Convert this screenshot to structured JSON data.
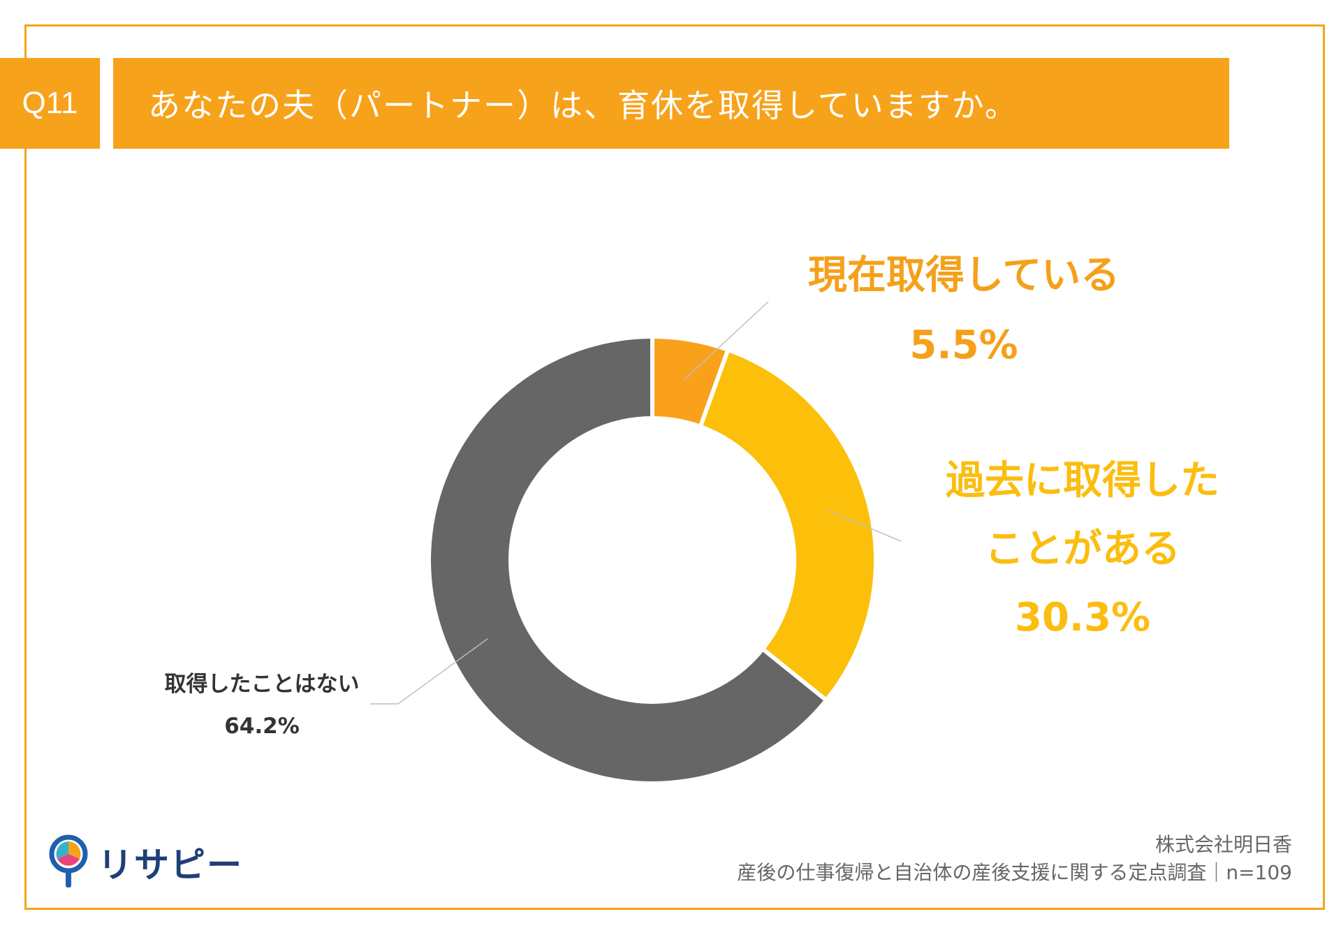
{
  "header": {
    "badge": "Q11",
    "question": "あなたの夫（パートナー）は、育休を取得していますか。"
  },
  "colors": {
    "accent": "#f7a21b",
    "current": "#f9a11b",
    "past": "#fcc00a",
    "never": "#666666",
    "label_never": "#333333"
  },
  "chart_data": {
    "type": "pie",
    "donut": true,
    "title": "",
    "slices": [
      {
        "name_lines": [
          "現在取得している"
        ],
        "value": 5.5,
        "label": "5.5%"
      },
      {
        "name_lines": [
          "過去に取得した",
          "ことがある"
        ],
        "value": 30.3,
        "label": "30.3%"
      },
      {
        "name_lines": [
          "取得したことはない"
        ],
        "value": 64.2,
        "label": "64.2%"
      }
    ]
  },
  "logo": {
    "text": "リサピー",
    "icon": "magnifier-pin-icon"
  },
  "footer": {
    "company": "株式会社明日香",
    "survey": "産後の仕事復帰と自治体の産後支援に関する定点調査｜n=109"
  }
}
